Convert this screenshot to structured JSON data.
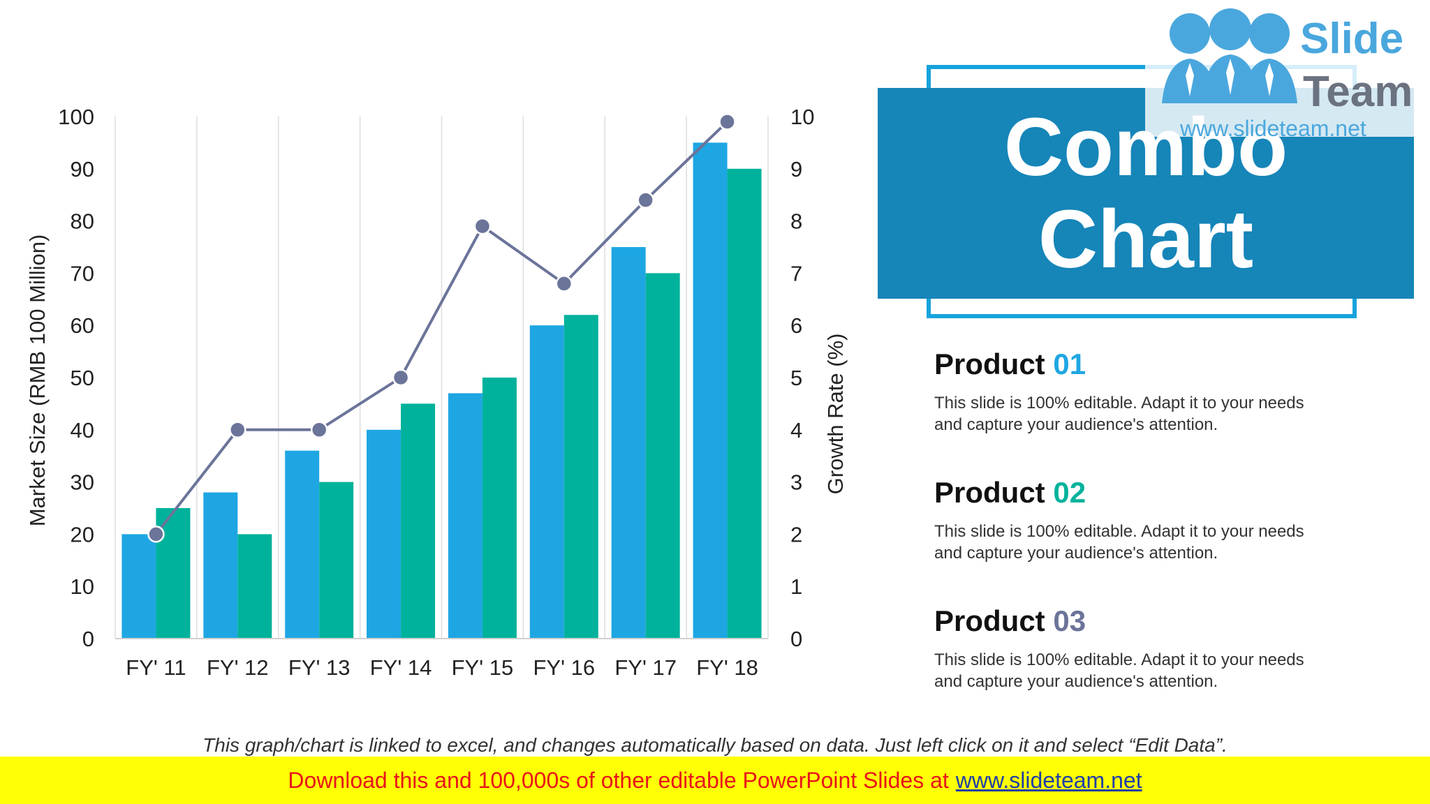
{
  "colors": {
    "product1": "#1ea6e3",
    "product2": "#00b29b",
    "line": "#6b7499",
    "title_bg": "#1685b8",
    "frame": "#16a3dc",
    "banner_bg": "#ffff05",
    "banner_text": "#e8151b"
  },
  "title": {
    "line1": "Combo",
    "line2": "Chart"
  },
  "logo": {
    "word1": "Slide",
    "word2": "Team",
    "url": "www.slideteam.net"
  },
  "products": [
    {
      "label": "Product",
      "num": "01",
      "color": "#1ea6e3",
      "desc1": "This slide is 100% editable. Adapt it to your needs",
      "desc2": "and capture your audience's attention."
    },
    {
      "label": "Product",
      "num": "02",
      "color": "#00b29b",
      "desc1": "This slide is 100% editable. Adapt it to your needs",
      "desc2": "and capture your audience's attention."
    },
    {
      "label": "Product",
      "num": "03",
      "color": "#6b7499",
      "desc1": "This slide is 100% editable. Adapt it to your needs",
      "desc2": "and capture your audience's attention."
    }
  ],
  "footnote": "This graph/chart is linked to excel, and changes automatically based on data. Just left click on it and select “Edit Data”.",
  "banner": {
    "text": "Download this and 100,000s of other editable PowerPoint Slides at",
    "link": "www.slideteam.net"
  },
  "chart_data": {
    "type": "bar",
    "categories": [
      "FY' 11",
      "FY' 12",
      "FY' 13",
      "FY' 14",
      "FY' 15",
      "FY' 16",
      "FY' 17",
      "FY' 18"
    ],
    "series": [
      {
        "values": [
          20,
          28,
          36,
          40,
          47,
          60,
          75,
          95
        ],
        "axis": "left",
        "type": "bar"
      },
      {
        "values": [
          25,
          20,
          30,
          45,
          50,
          62,
          70,
          90
        ],
        "axis": "left",
        "type": "bar"
      },
      {
        "values": [
          2,
          4,
          4,
          5,
          7.9,
          6.8,
          8.4,
          9.9
        ],
        "axis": "right",
        "type": "line"
      }
    ],
    "ylabel": "Market Size (RMB 100 Million)",
    "y2label": "Growth Rate (%)",
    "ylim": [
      0,
      100
    ],
    "y2lim": [
      0,
      10
    ],
    "yticks": [
      "0",
      "10",
      "20",
      "30",
      "40",
      "50",
      "60",
      "70",
      "80",
      "90",
      "100"
    ],
    "y2ticks": [
      "0",
      "1",
      "2",
      "3",
      "4",
      "5",
      "6",
      "7",
      "8",
      "9",
      "10"
    ],
    "grid": "vertical",
    "legend": "none"
  }
}
